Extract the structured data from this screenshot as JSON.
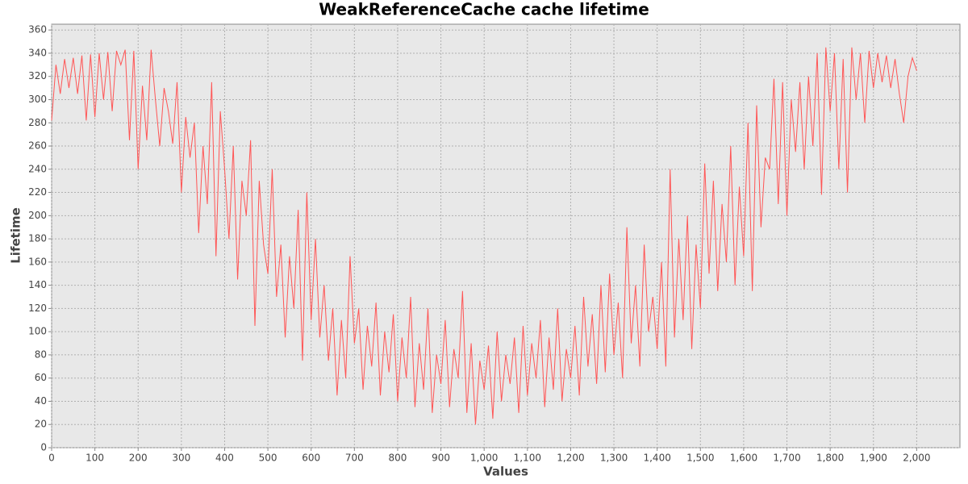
{
  "chart_data": {
    "type": "line",
    "title": "WeakReferenceCache cache lifetime",
    "x_label": "Values",
    "y_label": "Lifetime",
    "x": [
      0,
      10,
      20,
      30,
      40,
      50,
      60,
      70,
      80,
      90,
      100,
      110,
      120,
      130,
      140,
      150,
      160,
      170,
      180,
      190,
      200,
      210,
      220,
      230,
      240,
      250,
      260,
      270,
      280,
      290,
      300,
      310,
      320,
      330,
      340,
      350,
      360,
      370,
      380,
      390,
      400,
      410,
      420,
      430,
      440,
      450,
      460,
      470,
      480,
      490,
      500,
      510,
      520,
      530,
      540,
      550,
      560,
      570,
      580,
      590,
      600,
      610,
      620,
      630,
      640,
      650,
      660,
      670,
      680,
      690,
      700,
      710,
      720,
      730,
      740,
      750,
      760,
      770,
      780,
      790,
      800,
      810,
      820,
      830,
      840,
      850,
      860,
      870,
      880,
      890,
      900,
      910,
      920,
      930,
      940,
      950,
      960,
      970,
      980,
      990,
      1000,
      1010,
      1020,
      1030,
      1040,
      1050,
      1060,
      1070,
      1080,
      1090,
      1100,
      1110,
      1120,
      1130,
      1140,
      1150,
      1160,
      1170,
      1180,
      1190,
      1200,
      1210,
      1220,
      1230,
      1240,
      1250,
      1260,
      1270,
      1280,
      1290,
      1300,
      1310,
      1320,
      1330,
      1340,
      1350,
      1360,
      1370,
      1380,
      1390,
      1400,
      1410,
      1420,
      1430,
      1440,
      1450,
      1460,
      1470,
      1480,
      1490,
      1500,
      1510,
      1520,
      1530,
      1540,
      1550,
      1560,
      1570,
      1580,
      1590,
      1600,
      1610,
      1620,
      1630,
      1640,
      1650,
      1660,
      1670,
      1680,
      1690,
      1700,
      1710,
      1720,
      1730,
      1740,
      1750,
      1760,
      1770,
      1780,
      1790,
      1800,
      1810,
      1820,
      1830,
      1840,
      1850,
      1860,
      1870,
      1880,
      1890,
      1900,
      1910,
      1920,
      1930,
      1940,
      1950,
      1960,
      1970,
      1980,
      1990,
      2000
    ],
    "values": [
      282,
      330,
      305,
      335,
      310,
      336,
      305,
      338,
      282,
      339,
      285,
      340,
      300,
      341,
      290,
      342,
      330,
      343,
      265,
      342,
      240,
      312,
      265,
      343,
      300,
      260,
      310,
      290,
      262,
      315,
      220,
      285,
      250,
      280,
      185,
      260,
      210,
      315,
      165,
      290,
      240,
      180,
      260,
      145,
      230,
      200,
      265,
      105,
      230,
      175,
      150,
      240,
      130,
      175,
      95,
      165,
      120,
      205,
      75,
      220,
      110,
      180,
      95,
      140,
      75,
      120,
      45,
      110,
      60,
      165,
      90,
      120,
      50,
      105,
      70,
      125,
      45,
      100,
      65,
      115,
      40,
      95,
      60,
      130,
      35,
      90,
      50,
      120,
      30,
      80,
      55,
      110,
      35,
      85,
      60,
      135,
      30,
      90,
      20,
      75,
      50,
      88,
      25,
      100,
      40,
      80,
      55,
      95,
      30,
      105,
      45,
      90,
      60,
      110,
      35,
      95,
      50,
      120,
      40,
      85,
      60,
      105,
      45,
      130,
      70,
      115,
      55,
      140,
      65,
      150,
      80,
      125,
      60,
      190,
      90,
      140,
      70,
      175,
      100,
      130,
      85,
      160,
      70,
      240,
      95,
      180,
      110,
      200,
      85,
      175,
      120,
      245,
      150,
      230,
      135,
      210,
      160,
      260,
      140,
      225,
      165,
      280,
      135,
      295,
      190,
      250,
      240,
      318,
      210,
      315,
      200,
      300,
      255,
      315,
      240,
      320,
      260,
      340,
      218,
      345,
      290,
      340,
      240,
      335,
      220,
      345,
      300,
      340,
      280,
      342,
      310,
      340,
      315,
      338,
      310,
      335,
      305,
      280,
      320,
      336,
      325
    ],
    "color": "#ff5555",
    "xlim": [
      0,
      2100
    ],
    "ylim": [
      0,
      365
    ],
    "xticks": [
      0,
      100,
      200,
      300,
      400,
      500,
      600,
      700,
      800,
      900,
      {
        "value": 1000,
        "label": "1,000"
      },
      {
        "value": 1100,
        "label": "1,100"
      },
      {
        "value": 1200,
        "label": "1,200"
      },
      {
        "value": 1300,
        "label": "1,300"
      },
      {
        "value": 1400,
        "label": "1,400"
      },
      {
        "value": 1500,
        "label": "1,500"
      },
      {
        "value": 1600,
        "label": "1,600"
      },
      {
        "value": 1700,
        "label": "1,700"
      },
      {
        "value": 1800,
        "label": "1,800"
      },
      {
        "value": 1900,
        "label": "1,900"
      },
      {
        "value": 2000,
        "label": "2,000"
      }
    ],
    "yticks": [
      0,
      20,
      40,
      60,
      80,
      100,
      120,
      140,
      160,
      180,
      200,
      220,
      240,
      260,
      280,
      300,
      320,
      340,
      360
    ],
    "grid": true
  }
}
